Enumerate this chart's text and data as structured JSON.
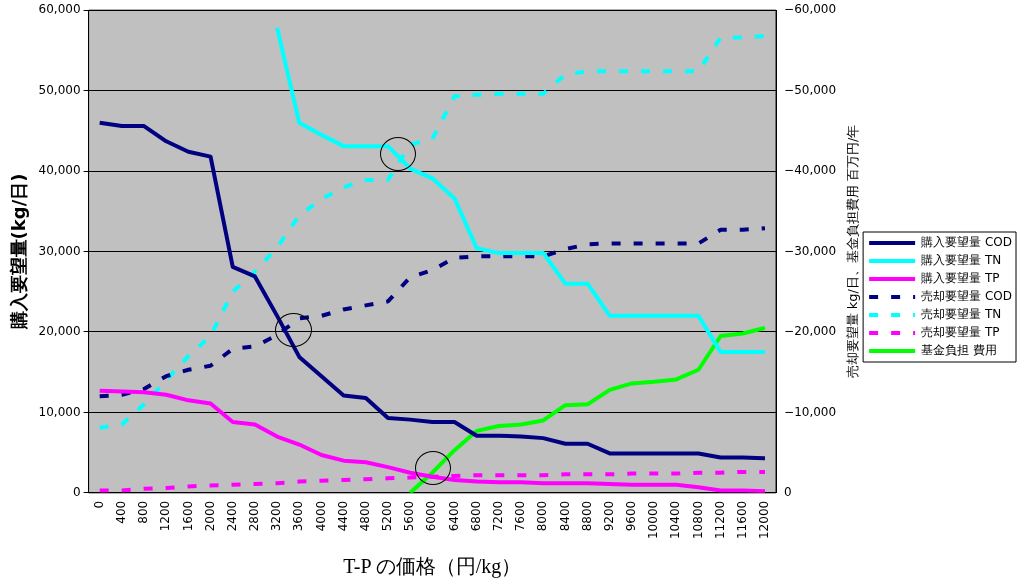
{
  "chart_data": {
    "type": "line",
    "xlabel": "T-P の価格（円/kg）",
    "ylabel": "購入要望量(kg/日)",
    "y2label": "売却要望量 kg/日、基金負担費用 百万円/年",
    "categories": [
      "0",
      "400",
      "800",
      "1200",
      "1600",
      "2000",
      "2400",
      "2800",
      "3200",
      "3600",
      "4000",
      "4400",
      "4800",
      "5200",
      "5600",
      "6000",
      "6400",
      "6800",
      "7200",
      "7600",
      "8000",
      "8400",
      "8800",
      "9200",
      "9600",
      "10000",
      "10400",
      "10800",
      "11200",
      "11600",
      "12000"
    ],
    "ylim": [
      0,
      60000
    ],
    "yticks": [
      {
        "value": 0,
        "label": "0"
      },
      {
        "value": 10000,
        "label": "10,000"
      },
      {
        "value": 20000,
        "label": "20,000"
      },
      {
        "value": 30000,
        "label": "30,000"
      },
      {
        "value": 40000,
        "label": "40,000"
      },
      {
        "value": 50000,
        "label": "50,000"
      },
      {
        "value": 60000,
        "label": "60,000"
      }
    ],
    "y2lim": [
      0,
      -60000
    ],
    "y2ticks": [
      {
        "value": 0,
        "label": "0"
      },
      {
        "value": -10000,
        "label": "−10,000"
      },
      {
        "value": -20000,
        "label": "−20,000"
      },
      {
        "value": -30000,
        "label": "−30,000"
      },
      {
        "value": -40000,
        "label": "−40,000"
      },
      {
        "value": -50000,
        "label": "−50,000"
      },
      {
        "value": -60000,
        "label": "−60,000"
      }
    ],
    "grid": "y",
    "legend": "right",
    "marker": "none",
    "series": [
      {
        "name": "購入要望量 COD",
        "color": "#000080",
        "line_style": "solid",
        "values": [
          46000,
          45600,
          45600,
          43700,
          42400,
          41800,
          28100,
          26900,
          22000,
          16900,
          14500,
          12100,
          11800,
          9300,
          9100,
          8800,
          8800,
          7100,
          7100,
          7000,
          6800,
          6100,
          6100,
          4900,
          4900,
          4900,
          4900,
          4900,
          4400,
          4400,
          4300
        ]
      },
      {
        "name": "購入要望量 TN",
        "color": "#00ffff",
        "line_style": "solid",
        "values": [
          null,
          null,
          null,
          null,
          null,
          null,
          null,
          null,
          57800,
          46000,
          44500,
          43100,
          43100,
          43100,
          40300,
          39100,
          36600,
          30400,
          29800,
          29800,
          29800,
          26000,
          26000,
          22000,
          22000,
          22000,
          22000,
          22000,
          17500,
          17500,
          17500
        ]
      },
      {
        "name": "購入要望量 TP",
        "color": "#ff00ff",
        "line_style": "solid",
        "values": [
          12700,
          12600,
          12500,
          12200,
          11500,
          11100,
          8800,
          8500,
          7000,
          6000,
          4700,
          4000,
          3800,
          3200,
          2500,
          2000,
          1600,
          1400,
          1300,
          1300,
          1200,
          1200,
          1200,
          1100,
          1000,
          1000,
          1000,
          700,
          300,
          300,
          200
        ]
      },
      {
        "name": "売却要望量 COD",
        "color": "#000080",
        "line_style": "dashed",
        "axis": "y2",
        "values": [
          -12000,
          -12200,
          -12900,
          -14500,
          -15300,
          -15800,
          -17900,
          -18200,
          -19600,
          -21700,
          -22000,
          -22800,
          -23300,
          -23800,
          -26800,
          -27700,
          -29200,
          -29400,
          -29400,
          -29400,
          -29400,
          -30300,
          -30900,
          -31000,
          -31000,
          -31000,
          -31000,
          -31000,
          -32700,
          -32700,
          -32900
        ]
      },
      {
        "name": "売却要望量 TN",
        "color": "#00ffff",
        "line_style": "dashed",
        "axis": "y2",
        "values": [
          -8100,
          -8500,
          -11000,
          -14000,
          -17000,
          -19500,
          -25000,
          -27500,
          -30500,
          -34500,
          -36500,
          -38000,
          -38900,
          -38900,
          -43300,
          -44000,
          -49300,
          -49500,
          -49600,
          -49600,
          -49600,
          -52000,
          -52400,
          -52400,
          -52400,
          -52400,
          -52400,
          -52400,
          -56600,
          -56600,
          -56800
        ]
      },
      {
        "name": "売却要望量 TP",
        "color": "#ff00ff",
        "line_style": "dashed",
        "axis": "y2",
        "values": [
          -300,
          -300,
          -500,
          -600,
          -800,
          -900,
          -1000,
          -1100,
          -1200,
          -1400,
          -1500,
          -1600,
          -1700,
          -1800,
          -1900,
          -2000,
          -2100,
          -2200,
          -2200,
          -2200,
          -2200,
          -2300,
          -2300,
          -2300,
          -2400,
          -2400,
          -2400,
          -2500,
          -2500,
          -2600,
          -2600
        ]
      },
      {
        "name": "基金負担 費用",
        "color": "#00ff00",
        "line_style": "solid",
        "axis": "y2",
        "values": [
          null,
          null,
          null,
          null,
          null,
          null,
          null,
          null,
          null,
          null,
          null,
          null,
          null,
          null,
          0,
          -2500,
          -5300,
          -7700,
          -8300,
          -8500,
          -9000,
          -10900,
          -11000,
          -12800,
          -13600,
          -13800,
          -14100,
          -15300,
          -19500,
          -19800,
          -20500
        ]
      }
    ]
  }
}
